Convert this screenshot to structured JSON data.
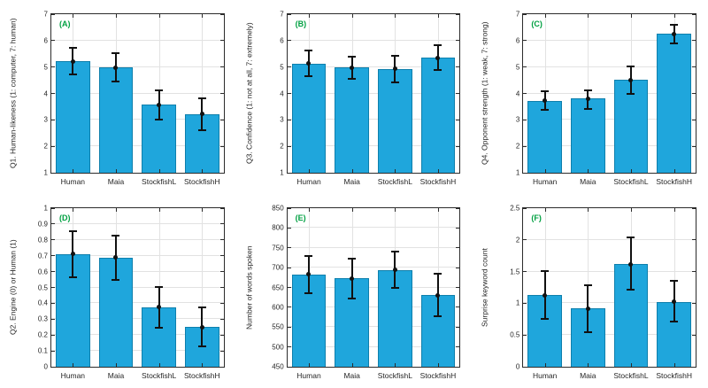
{
  "figure": {
    "background": "#ffffff",
    "bar_color": "#1fa6dc",
    "bar_edge_color": "#0e7fac",
    "error_color": "#111111",
    "grid_color": "#e2e2e2",
    "axis_color": "#2b2b2b",
    "tag_color": "#00a041"
  },
  "chart_data": [
    {
      "type": "bar",
      "tag": "(A)",
      "title": "",
      "xlabel": "",
      "ylabel": "Q1. Human-likeness (1: computer, 7: human)",
      "ylim": [
        1,
        7
      ],
      "yticks": [
        1,
        2,
        3,
        4,
        5,
        6,
        7
      ],
      "grid": true,
      "categories": [
        "Human",
        "Maia",
        "StockfishL",
        "StockfishH"
      ],
      "values": [
        5.22,
        4.98,
        3.58,
        3.22
      ],
      "err_low": [
        4.72,
        4.45,
        3.02,
        2.62
      ],
      "err_high": [
        5.72,
        5.52,
        4.13,
        3.83
      ]
    },
    {
      "type": "bar",
      "tag": "(B)",
      "title": "",
      "xlabel": "",
      "ylabel": "Q3. Confidence (1: not at all, 7: extremely)",
      "ylim": [
        1,
        7
      ],
      "yticks": [
        1,
        2,
        3,
        4,
        5,
        6,
        7
      ],
      "grid": true,
      "categories": [
        "Human",
        "Maia",
        "StockfishL",
        "StockfishH"
      ],
      "values": [
        5.13,
        4.98,
        4.93,
        5.35
      ],
      "err_low": [
        4.65,
        4.55,
        4.43,
        4.9
      ],
      "err_high": [
        5.62,
        5.4,
        5.43,
        5.82
      ]
    },
    {
      "type": "bar",
      "tag": "(C)",
      "title": "",
      "xlabel": "",
      "ylabel": "Q4. Opponent strength (1: weak, 7: strong)",
      "ylim": [
        1,
        7
      ],
      "yticks": [
        1,
        2,
        3,
        4,
        5,
        6,
        7
      ],
      "grid": true,
      "categories": [
        "Human",
        "Maia",
        "StockfishL",
        "StockfishH"
      ],
      "values": [
        3.72,
        3.8,
        4.52,
        6.25
      ],
      "err_low": [
        3.38,
        3.42,
        4.0,
        5.9
      ],
      "err_high": [
        4.08,
        4.13,
        5.03,
        6.6
      ]
    },
    {
      "type": "bar",
      "tag": "(D)",
      "title": "",
      "xlabel": "",
      "ylabel": "Q2. Engine (0) or Human (1)",
      "ylim": [
        0,
        1
      ],
      "yticks": [
        0,
        0.1,
        0.2,
        0.3,
        0.4,
        0.5,
        0.6,
        0.7,
        0.8,
        0.9,
        1
      ],
      "grid": true,
      "categories": [
        "Human",
        "Maia",
        "StockfishL",
        "StockfishH"
      ],
      "values": [
        0.71,
        0.69,
        0.375,
        0.25
      ],
      "err_low": [
        0.565,
        0.55,
        0.245,
        0.128
      ],
      "err_high": [
        0.855,
        0.825,
        0.505,
        0.372
      ]
    },
    {
      "type": "bar",
      "tag": "(E)",
      "title": "",
      "xlabel": "",
      "ylabel": "Number of words spoken",
      "ylim": [
        450,
        850
      ],
      "yticks": [
        450,
        500,
        550,
        600,
        650,
        700,
        750,
        800,
        850
      ],
      "grid": true,
      "categories": [
        "Human",
        "Maia",
        "StockfishL",
        "StockfishH"
      ],
      "values": [
        683,
        673,
        694,
        631
      ],
      "err_low": [
        635,
        623,
        648,
        577
      ],
      "err_high": [
        730,
        723,
        740,
        685
      ]
    },
    {
      "type": "bar",
      "tag": "(F)",
      "title": "",
      "xlabel": "",
      "ylabel": "Surprise keyword count",
      "ylim": [
        0,
        2.5
      ],
      "yticks": [
        0,
        0.5,
        1,
        1.5,
        2,
        2.5
      ],
      "grid": true,
      "categories": [
        "Human",
        "Maia",
        "StockfishL",
        "StockfishH"
      ],
      "values": [
        1.13,
        0.92,
        1.62,
        1.02
      ],
      "err_low": [
        0.75,
        0.55,
        1.22,
        0.71
      ],
      "err_high": [
        1.51,
        1.29,
        2.04,
        1.35
      ]
    }
  ]
}
